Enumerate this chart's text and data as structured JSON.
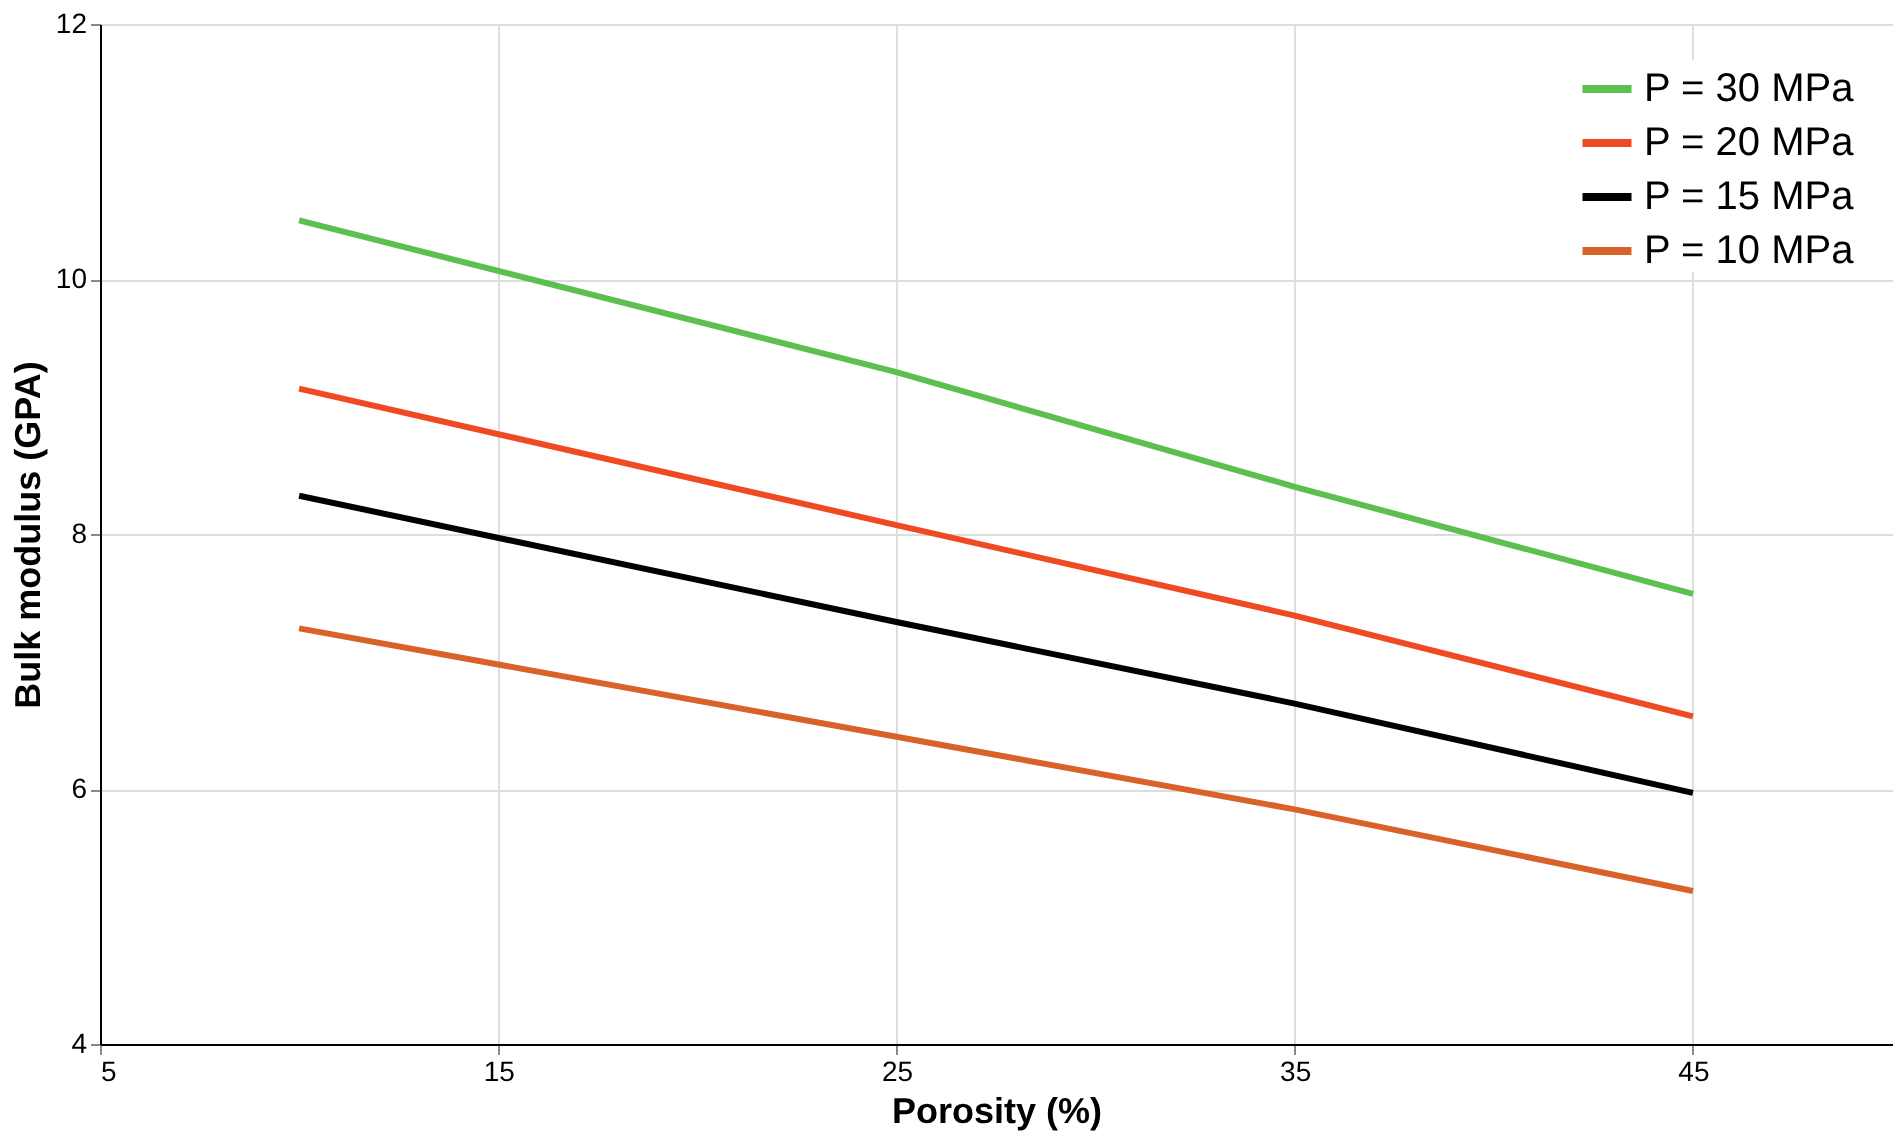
{
  "chart_data": {
    "type": "line",
    "xlabel": "Porosity (%)",
    "ylabel": "Bulk modulus (GPA)",
    "x": [
      10,
      25,
      35,
      45
    ],
    "series": [
      {
        "name": "P = 30 MPa",
        "color": "#5cbf4f",
        "values": [
          10.46,
          9.27,
          8.37,
          7.53
        ]
      },
      {
        "name": "P = 20 MPa",
        "color": "#f04a22",
        "values": [
          9.14,
          8.07,
          7.36,
          6.57
        ]
      },
      {
        "name": "P = 15 MPa",
        "color": "#000000",
        "values": [
          8.3,
          7.31,
          6.67,
          5.97
        ]
      },
      {
        "name": "P = 10 MPa",
        "color": "#d9622b",
        "values": [
          7.26,
          6.41,
          5.84,
          5.2
        ]
      }
    ],
    "xlim": [
      5,
      50
    ],
    "xticks": [
      5,
      15,
      25,
      35,
      45
    ],
    "ylim": [
      4,
      12
    ],
    "yticks": [
      4,
      6,
      8,
      10,
      12
    ],
    "grid": true,
    "legend": "top right",
    "marker": "none",
    "line_style": "solid"
  }
}
